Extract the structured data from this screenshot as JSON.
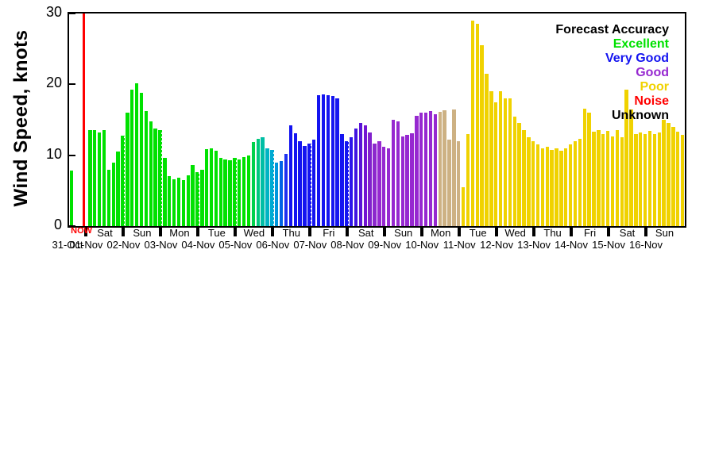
{
  "page": {
    "background": "#ffffff"
  },
  "y_axis": {
    "label": "Wind Speed, knots",
    "ticks": [
      0,
      10,
      20,
      30
    ],
    "min": 0,
    "max": 30
  },
  "now": {
    "label": "NOW",
    "color": "#ff0000"
  },
  "legend": {
    "title": "Forecast Accuracy",
    "position": "top-right",
    "items": [
      {
        "label": "Excellent",
        "color": "#00e100"
      },
      {
        "label": "Very Good",
        "color": "#1414f0"
      },
      {
        "label": "Good",
        "color": "#9628d0"
      },
      {
        "label": "Poor",
        "color": "#f0d200"
      },
      {
        "label": "Noise",
        "color": "#ff0000"
      },
      {
        "label": "Unknown",
        "color": "#000000"
      }
    ]
  },
  "chart_data": {
    "type": "bar",
    "title": "",
    "xlabel": "",
    "ylabel": "Wind Speed, knots",
    "unit": "knots",
    "ylim": [
      0,
      30
    ],
    "grid": "vertical-dotted-at-day-boundaries",
    "interval_hours": 3,
    "slots_per_day": 8,
    "now_slot": 3,
    "days": [
      {
        "date": "31-Oct",
        "weekday": "",
        "color": "#00e100",
        "values": [
          7.8,
          null,
          null,
          null
        ]
      },
      {
        "date": "01-Nov",
        "weekday": "Sat",
        "color": "#00e100",
        "values": [
          13.5,
          13.6,
          13.2,
          13.5,
          8.0,
          9.0,
          10.5,
          12.8
        ]
      },
      {
        "date": "02-Nov",
        "weekday": "Sun",
        "color": "#00e100",
        "values": [
          16.0,
          19.2,
          20.1,
          18.8,
          16.2,
          14.8,
          13.8,
          13.5
        ]
      },
      {
        "date": "03-Nov",
        "weekday": "Mon",
        "color": "#00e100",
        "values": [
          9.6,
          7.0,
          6.6,
          6.8,
          6.5,
          7.2,
          8.6,
          7.6
        ]
      },
      {
        "date": "04-Nov",
        "weekday": "Tue",
        "color": "#00e100",
        "values": [
          8.0,
          10.9,
          11.0,
          10.6,
          9.6,
          9.4,
          9.3,
          9.6
        ]
      },
      {
        "date": "05-Nov",
        "weekday": "Wed",
        "color": "#00e100",
        "colors": [
          "#00e100",
          "#00e100",
          "#00e100",
          "#00d24b",
          "#00c87d",
          "#00bea5",
          "#00b4c3",
          "#00aad2"
        ],
        "values": [
          9.4,
          9.7,
          10.0,
          11.9,
          12.3,
          12.5,
          11.0,
          10.8
        ]
      },
      {
        "date": "06-Nov",
        "weekday": "Thu",
        "color": "#1414f0",
        "colors": [
          "#0096dc",
          "#0064e6",
          "#1e32f0",
          "#1414f0",
          "#1414f0",
          "#1414f0",
          "#1414f0",
          "#1414f0"
        ],
        "values": [
          9.0,
          9.2,
          10.2,
          14.2,
          13.1,
          12.0,
          11.3,
          11.6
        ]
      },
      {
        "date": "07-Nov",
        "weekday": "Fri",
        "color": "#1414f0",
        "values": [
          12.2,
          18.5,
          18.6,
          18.5,
          18.4,
          18.0,
          13.0,
          12.0
        ]
      },
      {
        "date": "08-Nov",
        "weekday": "Sat",
        "color": "#9628d0",
        "colors": [
          "#2d14eb",
          "#4114e1",
          "#5a14d7",
          "#7314d2",
          "#8221cd",
          "#8c28cd",
          "#9628d0",
          "#9628d0"
        ],
        "values": [
          12.5,
          13.8,
          14.5,
          14.2,
          13.2,
          11.6,
          12.0,
          11.2
        ]
      },
      {
        "date": "09-Nov",
        "weekday": "Sun",
        "color": "#9628d0",
        "values": [
          11.0,
          15.0,
          14.8,
          12.6,
          12.9,
          13.1,
          15.6,
          16.0
        ]
      },
      {
        "date": "10-Nov",
        "weekday": "Mon",
        "color": "#9628d0",
        "colors": [
          "#9628d0",
          "#9628d0",
          "#9628d0",
          "#cdb183",
          "#cdb183",
          "#cdb183",
          "#cdb183",
          "#cdb183"
        ],
        "values": [
          16.0,
          16.2,
          15.8,
          16.1,
          16.4,
          12.2,
          16.5,
          12.0
        ]
      },
      {
        "date": "11-Nov",
        "weekday": "Tue",
        "color": "#f0d200",
        "values": [
          5.5,
          13.0,
          29.0,
          28.5,
          25.5,
          21.5,
          19.0,
          17.5
        ]
      },
      {
        "date": "12-Nov",
        "weekday": "Wed",
        "color": "#f0d200",
        "values": [
          19.0,
          18.0,
          18.0,
          15.5,
          14.5,
          13.5,
          12.5,
          12.0
        ]
      },
      {
        "date": "13-Nov",
        "weekday": "Thu",
        "color": "#f0d200",
        "values": [
          11.5,
          11.0,
          11.2,
          10.8,
          11.0,
          10.6,
          11.0,
          11.5
        ]
      },
      {
        "date": "14-Nov",
        "weekday": "Fri",
        "color": "#f0d200",
        "values": [
          12.0,
          12.3,
          16.6,
          16.0,
          13.3,
          13.5,
          13.0,
          13.4
        ]
      },
      {
        "date": "15-Nov",
        "weekday": "Sat",
        "color": "#f0d200",
        "values": [
          12.6,
          13.5,
          12.5,
          19.2,
          16.5,
          13.0,
          13.2,
          13.0
        ]
      },
      {
        "date": "16-Nov",
        "weekday": "Sun",
        "color": "#f0d200",
        "values": [
          13.4,
          13.0,
          13.2,
          15.0,
          14.6,
          14.0,
          13.3,
          12.9
        ]
      }
    ]
  }
}
